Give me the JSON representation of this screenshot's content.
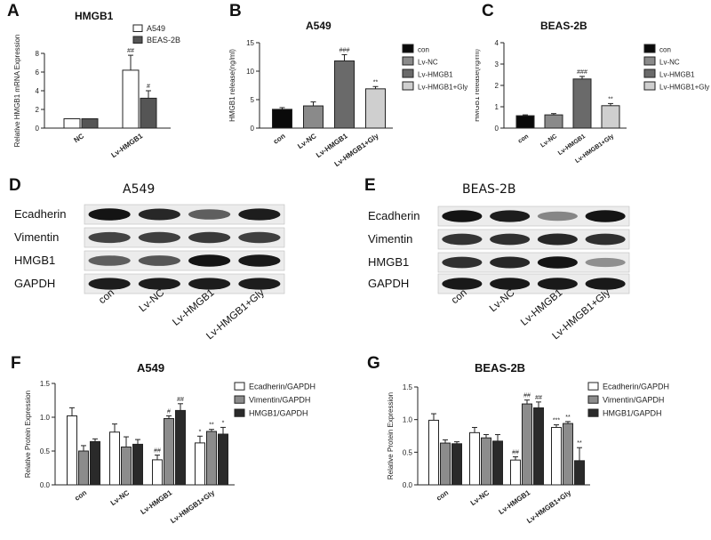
{
  "panels": {
    "A": {
      "letter": "A",
      "title": "HMGB1"
    },
    "B": {
      "letter": "B",
      "title": "A549"
    },
    "C": {
      "letter": "C",
      "title": "BEAS-2B"
    },
    "D": {
      "letter": "D",
      "title": "A549",
      "rows": [
        "Ecadherin",
        "Vimentin",
        "HMGB1",
        "GAPDH"
      ],
      "lanes": [
        "con",
        "Lv-NC",
        "Lv-HMGB1",
        "Lv-HMGB1+Gly"
      ]
    },
    "E": {
      "letter": "E",
      "title": "BEAS-2B",
      "rows": [
        "Ecadherin",
        "Vimentin",
        "HMGB1",
        "GAPDH"
      ],
      "lanes": [
        "con",
        "Lv-NC",
        "Lv-HMGB1",
        "Lv-HMGB1+Gly"
      ]
    },
    "F": {
      "letter": "F",
      "title": "A549"
    },
    "G": {
      "letter": "G",
      "title": "BEAS-2B"
    }
  },
  "chart_data": [
    {
      "id": "A",
      "type": "bar",
      "title": "HMGB1",
      "ylabel": "Relative HMGB1 mRNA Expression",
      "ylim": [
        0,
        8
      ],
      "yticks": [
        0,
        2,
        4,
        6,
        8
      ],
      "categories": [
        "NC",
        "Lv-HMGB1"
      ],
      "series": [
        {
          "name": "A549",
          "color": "#ffffff",
          "values": [
            1.0,
            6.2
          ],
          "errors": [
            0,
            1.6
          ]
        },
        {
          "name": "BEAS-2B",
          "color": "#555555",
          "values": [
            1.0,
            3.2
          ],
          "errors": [
            0,
            0.8
          ]
        }
      ],
      "annotations": [
        [
          "",
          "##"
        ],
        [
          "",
          "#"
        ]
      ],
      "legend": "top-right"
    },
    {
      "id": "B",
      "type": "bar",
      "title": "A549",
      "ylabel": "HMGB1 release(ng/ml)",
      "ylim": [
        0,
        15
      ],
      "yticks": [
        0,
        5,
        10,
        15
      ],
      "categories": [
        "con",
        "Lv-NC",
        "Lv-HMGB1",
        "Lv-HMGB1+Gly"
      ],
      "series": [
        {
          "name": "",
          "values": [
            3.3,
            3.9,
            11.8,
            6.9
          ],
          "errors": [
            0.3,
            0.7,
            1.1,
            0.4
          ]
        }
      ],
      "bar_colors": [
        "#0a0a0a",
        "#8a8a8a",
        "#6a6a6a",
        "#cfcfcf"
      ],
      "legend_entries": [
        "con",
        "Lv-NC",
        "Lv-HMGB1",
        "Lv-HMGB1+Gly"
      ],
      "annotations": [
        "",
        "",
        "###",
        "**"
      ],
      "legend": "right"
    },
    {
      "id": "C",
      "type": "bar",
      "title": "BEAS-2B",
      "ylabel": "HMGB1 release(ng/ml)",
      "ylim": [
        0,
        4
      ],
      "yticks": [
        0,
        1,
        2,
        3,
        4
      ],
      "categories": [
        "con",
        "Lv-NC",
        "Lv-HMGB1",
        "Lv-HMGB1+Gly"
      ],
      "series": [
        {
          "name": "",
          "values": [
            0.58,
            0.62,
            2.3,
            1.05
          ],
          "errors": [
            0.04,
            0.06,
            0.12,
            0.1
          ]
        }
      ],
      "bar_colors": [
        "#0a0a0a",
        "#8a8a8a",
        "#6a6a6a",
        "#cfcfcf"
      ],
      "legend_entries": [
        "con",
        "Lv-NC",
        "Lv-HMGB1",
        "Lv-HMGB1+Gly"
      ],
      "annotations": [
        "",
        "",
        "###",
        "**"
      ],
      "legend": "right"
    },
    {
      "id": "F",
      "type": "bar",
      "title": "A549",
      "ylabel": "Relative Protein Expression",
      "ylim": [
        0,
        1.5
      ],
      "yticks": [
        0.0,
        0.5,
        1.0,
        1.5
      ],
      "categories": [
        "con",
        "Lv-NC",
        "Lv-HMGB1",
        "Lv-HMGB1+Gly"
      ],
      "series": [
        {
          "name": "Ecadherin/GAPDH",
          "color": "#ffffff",
          "values": [
            1.02,
            0.78,
            0.37,
            0.62
          ],
          "errors": [
            0.12,
            0.12,
            0.07,
            0.1
          ]
        },
        {
          "name": "Vimentin/GAPDH",
          "color": "#8c8c8c",
          "values": [
            0.5,
            0.56,
            0.98,
            0.79
          ],
          "errors": [
            0.08,
            0.15,
            0.04,
            0.03
          ]
        },
        {
          "name": "HMGB1/GAPDH",
          "color": "#2a2a2a",
          "values": [
            0.64,
            0.6,
            1.1,
            0.75
          ],
          "errors": [
            0.04,
            0.07,
            0.1,
            0.1
          ]
        }
      ],
      "annotations": [
        [
          "",
          "",
          ""
        ],
        [
          "",
          "",
          ""
        ],
        [
          "##",
          "#",
          "##"
        ],
        [
          "*",
          "**",
          "*"
        ]
      ],
      "legend": "right"
    },
    {
      "id": "G",
      "type": "bar",
      "title": "BEAS-2B",
      "ylabel": "Relative Protein Expression",
      "ylim": [
        0,
        1.5
      ],
      "yticks": [
        0.0,
        0.5,
        1.0,
        1.5
      ],
      "categories": [
        "con",
        "Lv-NC",
        "Lv-HMGB1",
        "Lv-HMGB1+Gly"
      ],
      "series": [
        {
          "name": "Ecadherin/GAPDH",
          "color": "#ffffff",
          "values": [
            0.99,
            0.8,
            0.38,
            0.88
          ],
          "errors": [
            0.1,
            0.08,
            0.05,
            0.04
          ]
        },
        {
          "name": "Vimentin/GAPDH",
          "color": "#8c8c8c",
          "values": [
            0.64,
            0.72,
            1.24,
            0.94
          ],
          "errors": [
            0.05,
            0.05,
            0.06,
            0.03
          ]
        },
        {
          "name": "HMGB1/GAPDH",
          "color": "#2a2a2a",
          "values": [
            0.63,
            0.67,
            1.18,
            0.37
          ],
          "errors": [
            0.03,
            0.1,
            0.09,
            0.2
          ]
        }
      ],
      "annotations": [
        [
          "",
          "",
          ""
        ],
        [
          "",
          "",
          ""
        ],
        [
          "##",
          "##",
          "##"
        ],
        [
          "***",
          "**",
          "**"
        ]
      ],
      "legend": "right"
    }
  ]
}
